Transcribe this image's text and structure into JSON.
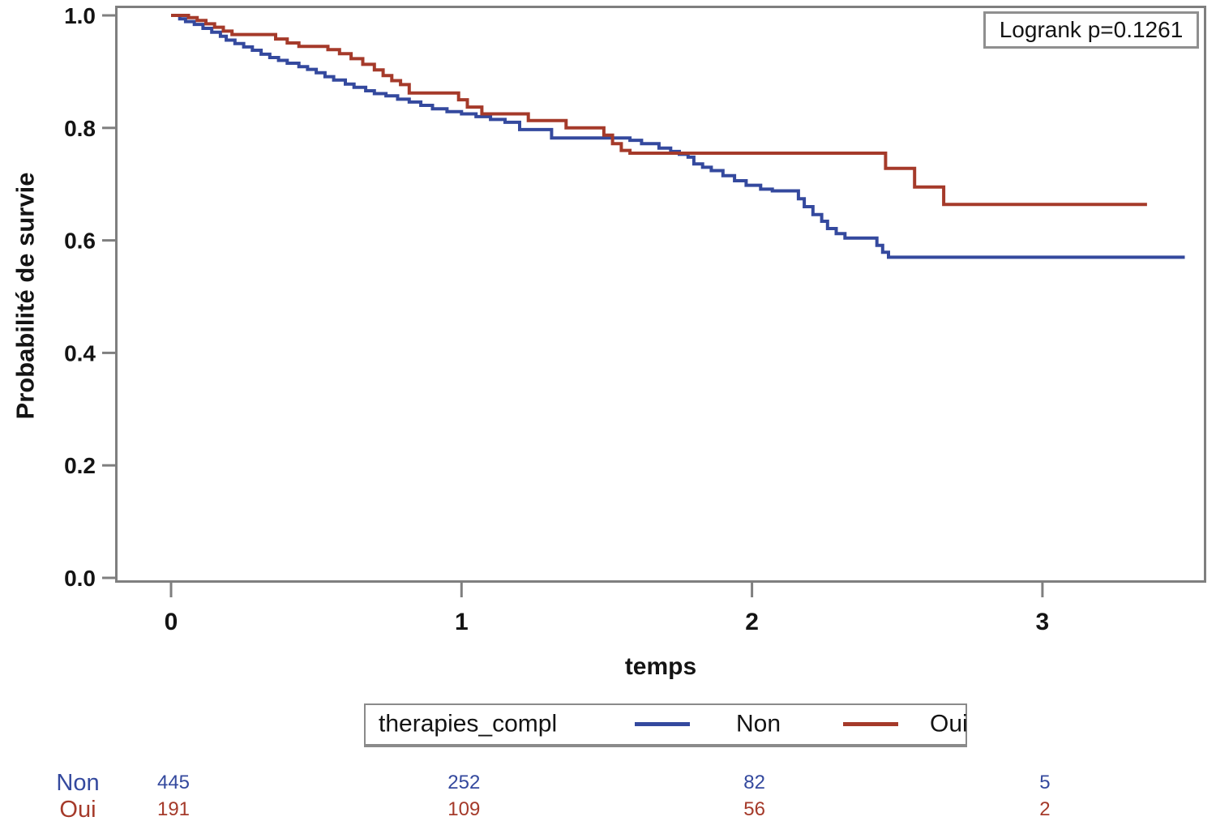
{
  "figure": {
    "logrank_label": "Logrank p=0.1261",
    "y_axis_title": "Probabilité de survie",
    "x_axis_title": "temps"
  },
  "legend": {
    "title": "therapies_compl",
    "entries": [
      {
        "label": "Non",
        "color_key": "non"
      },
      {
        "label": "Oui",
        "color_key": "oui"
      }
    ]
  },
  "colors": {
    "non": "#34499E",
    "oui": "#A53A2A",
    "frame": "#7F7F7F",
    "text": "#141414"
  },
  "risk_table": {
    "rows": [
      {
        "label": "Non",
        "values": [
          "445",
          "252",
          "82",
          "5"
        ]
      },
      {
        "label": "Oui",
        "values": [
          "191",
          "109",
          "56",
          "2"
        ]
      }
    ]
  },
  "chart_data": {
    "type": "line",
    "subtype": "kaplan-meier-step",
    "title": "",
    "xlabel": "temps",
    "ylabel": "Probabilité de survie",
    "xlim": [
      -0.19,
      3.56
    ],
    "ylim": [
      0.0,
      1.02
    ],
    "grid": false,
    "legend_position": "bottom",
    "annotations": [
      "Logrank p=0.1261"
    ],
    "x_ticks": [
      {
        "v": 0,
        "label": "0"
      },
      {
        "v": 1,
        "label": "1"
      },
      {
        "v": 2,
        "label": "2"
      },
      {
        "v": 3,
        "label": "3"
      }
    ],
    "y_ticks": [
      {
        "v": 0.0,
        "label": "0.0"
      },
      {
        "v": 0.2,
        "label": "0.2"
      },
      {
        "v": 0.4,
        "label": "0.4"
      },
      {
        "v": 0.6,
        "label": "0.6"
      },
      {
        "v": 0.8,
        "label": "0.8"
      },
      {
        "v": 1.0,
        "label": "1.0"
      }
    ],
    "series": [
      {
        "name": "Non",
        "color_key": "non",
        "points": [
          [
            0.0,
            1.0
          ],
          [
            0.03,
            0.994
          ],
          [
            0.05,
            0.989
          ],
          [
            0.08,
            0.984
          ],
          [
            0.11,
            0.977
          ],
          [
            0.14,
            0.97
          ],
          [
            0.17,
            0.963
          ],
          [
            0.19,
            0.956
          ],
          [
            0.22,
            0.95
          ],
          [
            0.25,
            0.944
          ],
          [
            0.28,
            0.938
          ],
          [
            0.31,
            0.931
          ],
          [
            0.34,
            0.925
          ],
          [
            0.37,
            0.92
          ],
          [
            0.4,
            0.915
          ],
          [
            0.44,
            0.909
          ],
          [
            0.47,
            0.904
          ],
          [
            0.5,
            0.898
          ],
          [
            0.53,
            0.891
          ],
          [
            0.56,
            0.885
          ],
          [
            0.6,
            0.878
          ],
          [
            0.63,
            0.872
          ],
          [
            0.67,
            0.866
          ],
          [
            0.7,
            0.861
          ],
          [
            0.74,
            0.857
          ],
          [
            0.78,
            0.851
          ],
          [
            0.82,
            0.846
          ],
          [
            0.86,
            0.84
          ],
          [
            0.9,
            0.834
          ],
          [
            0.95,
            0.829
          ],
          [
            1.0,
            0.825
          ],
          [
            1.05,
            0.82
          ],
          [
            1.1,
            0.815
          ],
          [
            1.15,
            0.81
          ],
          [
            1.2,
            0.797
          ],
          [
            1.31,
            0.782
          ],
          [
            1.58,
            0.778
          ],
          [
            1.62,
            0.772
          ],
          [
            1.68,
            0.764
          ],
          [
            1.72,
            0.758
          ],
          [
            1.75,
            0.753
          ],
          [
            1.78,
            0.748
          ],
          [
            1.8,
            0.736
          ],
          [
            1.83,
            0.73
          ],
          [
            1.86,
            0.724
          ],
          [
            1.9,
            0.715
          ],
          [
            1.94,
            0.706
          ],
          [
            1.98,
            0.698
          ],
          [
            2.03,
            0.691
          ],
          [
            2.07,
            0.688
          ],
          [
            2.16,
            0.674
          ],
          [
            2.18,
            0.66
          ],
          [
            2.21,
            0.646
          ],
          [
            2.24,
            0.634
          ],
          [
            2.26,
            0.621
          ],
          [
            2.29,
            0.612
          ],
          [
            2.32,
            0.604
          ],
          [
            2.43,
            0.591
          ],
          [
            2.45,
            0.579
          ],
          [
            2.47,
            0.57
          ],
          [
            3.49,
            0.57
          ]
        ],
        "at_risk": [
          445,
          252,
          82,
          5
        ]
      },
      {
        "name": "Oui",
        "color_key": "oui",
        "points": [
          [
            0.0,
            1.0
          ],
          [
            0.06,
            0.996
          ],
          [
            0.09,
            0.991
          ],
          [
            0.12,
            0.985
          ],
          [
            0.15,
            0.979
          ],
          [
            0.18,
            0.972
          ],
          [
            0.21,
            0.966
          ],
          [
            0.36,
            0.958
          ],
          [
            0.4,
            0.951
          ],
          [
            0.44,
            0.945
          ],
          [
            0.54,
            0.939
          ],
          [
            0.58,
            0.932
          ],
          [
            0.62,
            0.923
          ],
          [
            0.66,
            0.913
          ],
          [
            0.7,
            0.903
          ],
          [
            0.73,
            0.893
          ],
          [
            0.76,
            0.884
          ],
          [
            0.79,
            0.877
          ],
          [
            0.82,
            0.862
          ],
          [
            0.99,
            0.85
          ],
          [
            1.02,
            0.837
          ],
          [
            1.07,
            0.825
          ],
          [
            1.23,
            0.813
          ],
          [
            1.36,
            0.8
          ],
          [
            1.49,
            0.787
          ],
          [
            1.52,
            0.772
          ],
          [
            1.55,
            0.76
          ],
          [
            1.58,
            0.755
          ],
          [
            2.46,
            0.728
          ],
          [
            2.56,
            0.695
          ],
          [
            2.66,
            0.664
          ],
          [
            3.36,
            0.664
          ]
        ],
        "at_risk": [
          191,
          109,
          56,
          2
        ]
      }
    ]
  }
}
